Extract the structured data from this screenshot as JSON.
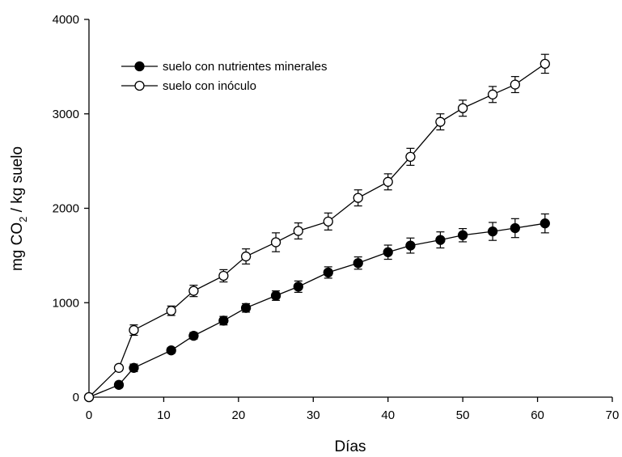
{
  "chart_data": {
    "type": "scatter",
    "xlabel": "Días",
    "ylabel_parts": [
      "mg CO",
      "2",
      " / kg suelo"
    ],
    "xlim": [
      0,
      70
    ],
    "ylim": [
      0,
      4000
    ],
    "x_ticks": [
      0,
      10,
      20,
      30,
      40,
      50,
      60,
      70
    ],
    "y_ticks": [
      0,
      1000,
      2000,
      3000,
      4000
    ],
    "grid": false,
    "legend_position": "top-left",
    "series": [
      {
        "name": "suelo con nutrientes minerales",
        "marker": "filled-circle",
        "color": "#000000",
        "x": [
          0,
          4,
          6,
          11,
          14,
          18,
          21,
          25,
          28,
          32,
          36,
          40,
          43,
          47,
          50,
          54,
          57,
          61
        ],
        "y": [
          0,
          130,
          310,
          495,
          650,
          810,
          945,
          1075,
          1170,
          1320,
          1420,
          1535,
          1605,
          1665,
          1715,
          1755,
          1790,
          1840
        ],
        "err": [
          20,
          30,
          40,
          30,
          35,
          45,
          45,
          50,
          60,
          60,
          65,
          75,
          80,
          85,
          70,
          95,
          100,
          100
        ]
      },
      {
        "name": "suelo con inóculo",
        "marker": "open-circle",
        "color": "#000000",
        "x": [
          0,
          4,
          6,
          11,
          14,
          18,
          21,
          25,
          28,
          32,
          36,
          40,
          43,
          47,
          50,
          54,
          57,
          61
        ],
        "y": [
          0,
          310,
          710,
          915,
          1125,
          1285,
          1490,
          1640,
          1760,
          1860,
          2110,
          2280,
          2545,
          2915,
          3060,
          3205,
          3310,
          3530
        ],
        "err": [
          20,
          30,
          55,
          50,
          60,
          65,
          80,
          100,
          85,
          90,
          85,
          85,
          90,
          85,
          85,
          85,
          85,
          100
        ]
      }
    ]
  }
}
